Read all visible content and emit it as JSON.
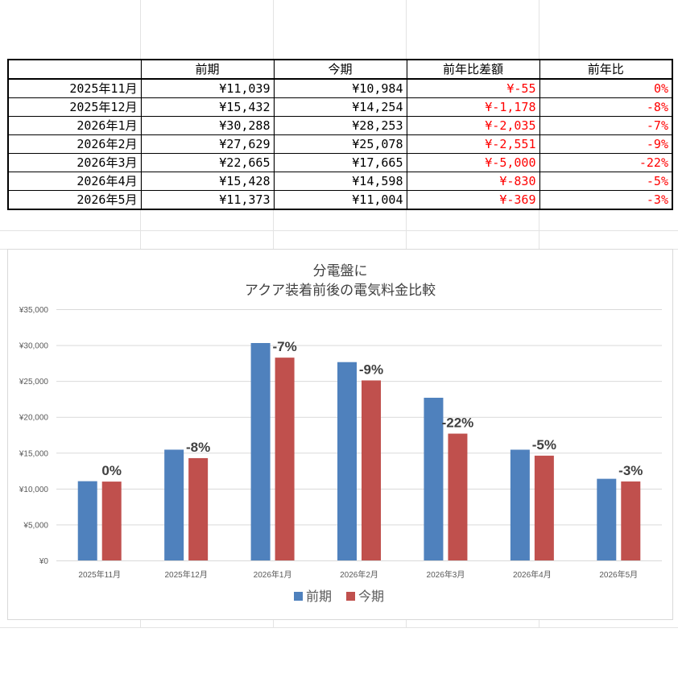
{
  "table": {
    "headers": [
      "",
      "前期",
      "今期",
      "前年比差額",
      "前年比"
    ],
    "rows": [
      {
        "month": "2025年11月",
        "prev": "¥11,039",
        "curr": "¥10,984",
        "diff": "¥-55",
        "ratio": "0%"
      },
      {
        "month": "2025年12月",
        "prev": "¥15,432",
        "curr": "¥14,254",
        "diff": "¥-1,178",
        "ratio": "-8%"
      },
      {
        "month": "2026年1月",
        "prev": "¥30,288",
        "curr": "¥28,253",
        "diff": "¥-2,035",
        "ratio": "-7%"
      },
      {
        "month": "2026年2月",
        "prev": "¥27,629",
        "curr": "¥25,078",
        "diff": "¥-2,551",
        "ratio": "-9%"
      },
      {
        "month": "2026年3月",
        "prev": "¥22,665",
        "curr": "¥17,665",
        "diff": "¥-5,000",
        "ratio": "-22%"
      },
      {
        "month": "2026年4月",
        "prev": "¥15,428",
        "curr": "¥14,598",
        "diff": "¥-830",
        "ratio": "-5%"
      },
      {
        "month": "2026年5月",
        "prev": "¥11,373",
        "curr": "¥11,004",
        "diff": "¥-369",
        "ratio": "-3%"
      }
    ]
  },
  "colors": {
    "prev": "#4f81bd",
    "curr": "#c0504d",
    "negative": "#ff0000",
    "axis_text": "#595959",
    "gridline": "#d9d9d9"
  },
  "chart_data": {
    "type": "bar",
    "title_line1": "分電盤に",
    "title_line2": "アクア装着前後の電気料金比較",
    "categories": [
      "2025年11月",
      "2025年12月",
      "2026年1月",
      "2026年2月",
      "2026年3月",
      "2026年4月",
      "2026年5月"
    ],
    "series": [
      {
        "name": "前期",
        "values": [
          11039,
          15432,
          30288,
          27629,
          22665,
          15428,
          11373
        ]
      },
      {
        "name": "今期",
        "values": [
          10984,
          14254,
          28253,
          25078,
          17665,
          14598,
          11004
        ]
      }
    ],
    "data_labels": [
      "0%",
      "-8%",
      "-7%",
      "-9%",
      "-22%",
      "-5%",
      "-3%"
    ],
    "y_ticks": [
      "¥0",
      "¥5,000",
      "¥10,000",
      "¥15,000",
      "¥20,000",
      "¥25,000",
      "¥30,000",
      "¥35,000"
    ],
    "ylim": [
      0,
      35000
    ],
    "grid": true,
    "legend": "bottom"
  }
}
